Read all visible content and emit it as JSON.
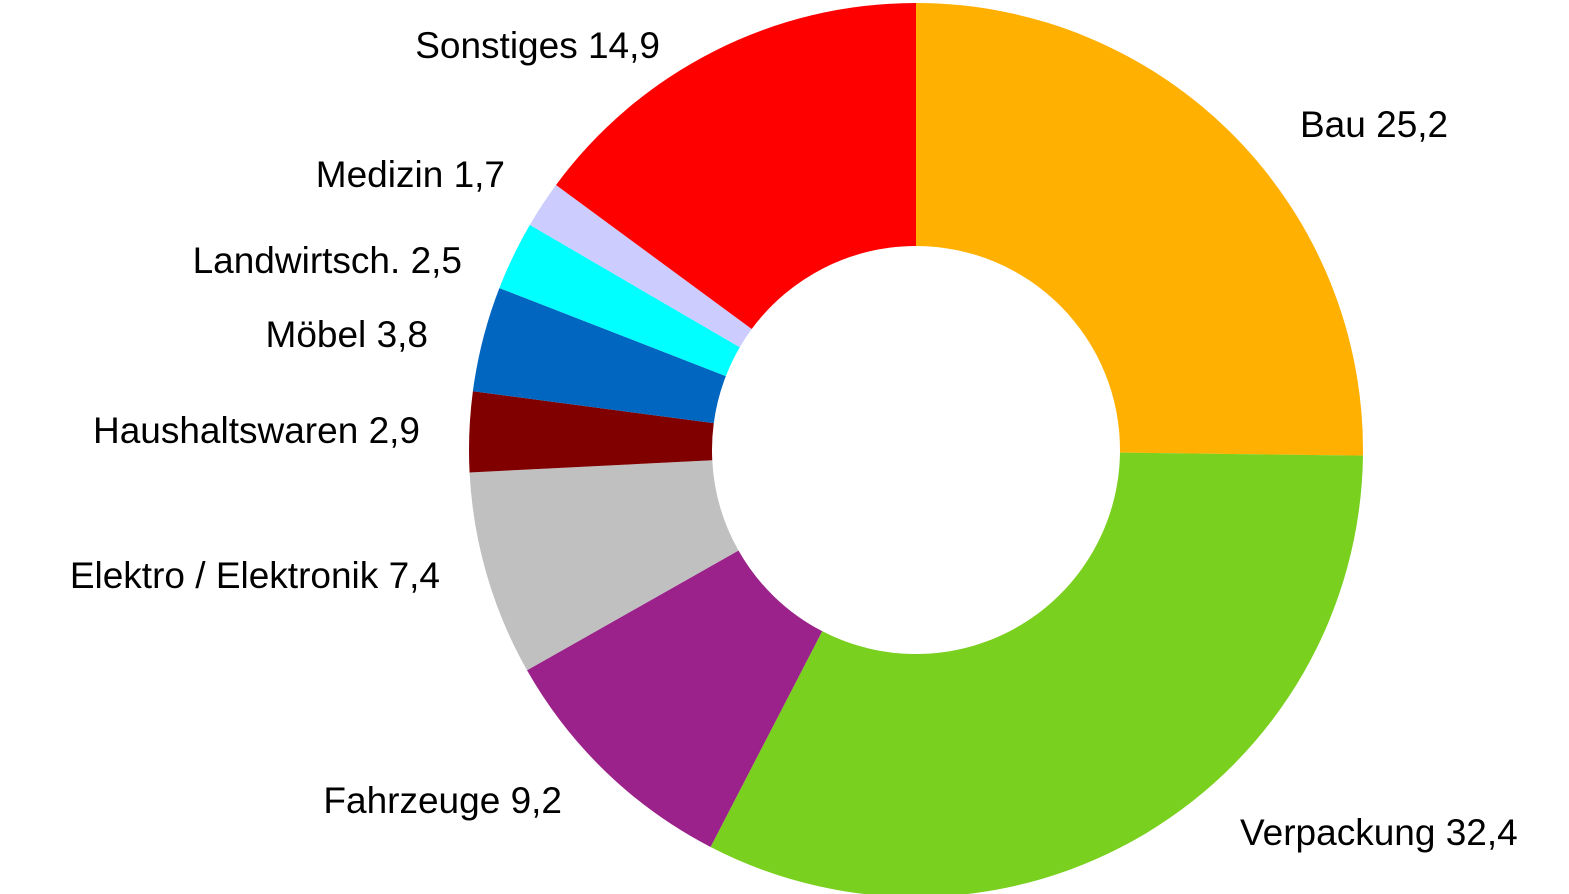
{
  "chart_data": {
    "type": "donut",
    "categories": [
      "Bau",
      "Verpackung",
      "Fahrzeuge",
      "Elektro / Elektronik",
      "Haushaltswaren",
      "Möbel",
      "Landwirtsch.",
      "Medizin",
      "Sonstiges"
    ],
    "values": [
      25.2,
      32.4,
      9.2,
      7.4,
      2.9,
      3.8,
      2.5,
      1.7,
      14.9
    ],
    "value_labels": [
      "25,2",
      "32,4",
      "9,2",
      "7,4",
      "2,9",
      "3,8",
      "2,5",
      "1,7",
      "14,9"
    ],
    "colors": [
      "#ffb000",
      "#7ad01e",
      "#9b228a",
      "#c0c0c0",
      "#800000",
      "#0066c0",
      "#00ffff",
      "#ccccff",
      "#ff0000"
    ]
  }
}
